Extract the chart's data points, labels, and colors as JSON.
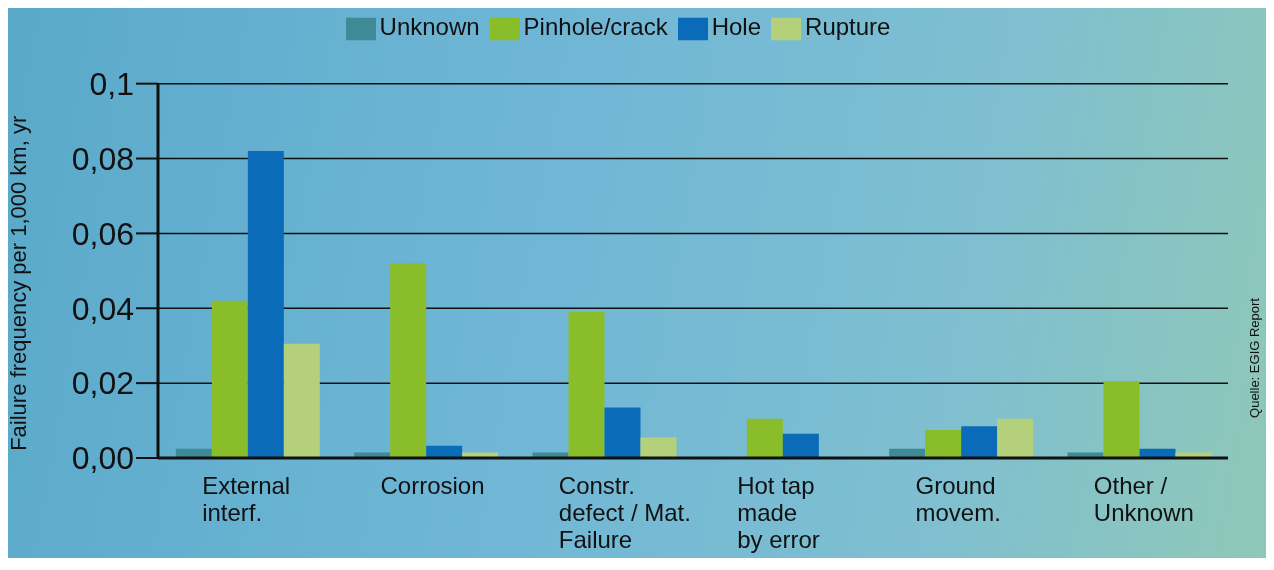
{
  "chart_data": {
    "type": "bar",
    "ylabel": "Failure frequency per 1,000 km, yr",
    "categories": [
      "External\ninterf.",
      "Corrosion",
      "Constr.\ndefect / Mat.\nFailure",
      "Hot tap\nmade\nby error",
      "Ground\nmovem.",
      "Other /\nUnknown"
    ],
    "series": [
      {
        "name": "Unknown",
        "color": "#3f8a96",
        "values": [
          0.0025,
          0.0015,
          0.0015,
          null,
          0.0025,
          0.0015
        ]
      },
      {
        "name": "Pinhole/crack",
        "color": "#8abd2a",
        "values": [
          0.042,
          0.052,
          0.039,
          0.0105,
          0.0075,
          0.0205
        ]
      },
      {
        "name": "Hole",
        "color": "#0a6bb8",
        "values": [
          0.082,
          0.0033,
          0.0135,
          0.0065,
          0.0085,
          0.0025
        ]
      },
      {
        "name": "Rupture",
        "color": "#b5d07a",
        "values": [
          0.0305,
          0.0015,
          0.0055,
          null,
          0.0105,
          0.0015
        ]
      }
    ],
    "ylim": [
      0,
      0.1
    ],
    "yticks": [
      {
        "value": 0,
        "label": "0,00"
      },
      {
        "value": 0.02,
        "label": "0,02"
      },
      {
        "value": 0.04,
        "label": "0,04"
      },
      {
        "value": 0.06,
        "label": "0,06"
      },
      {
        "value": 0.08,
        "label": "0,08"
      },
      {
        "value": 0.1,
        "label": "0,1"
      }
    ],
    "grid": "y",
    "legend": "top",
    "annotations": [
      "Quelle: EGIG Report"
    ]
  }
}
